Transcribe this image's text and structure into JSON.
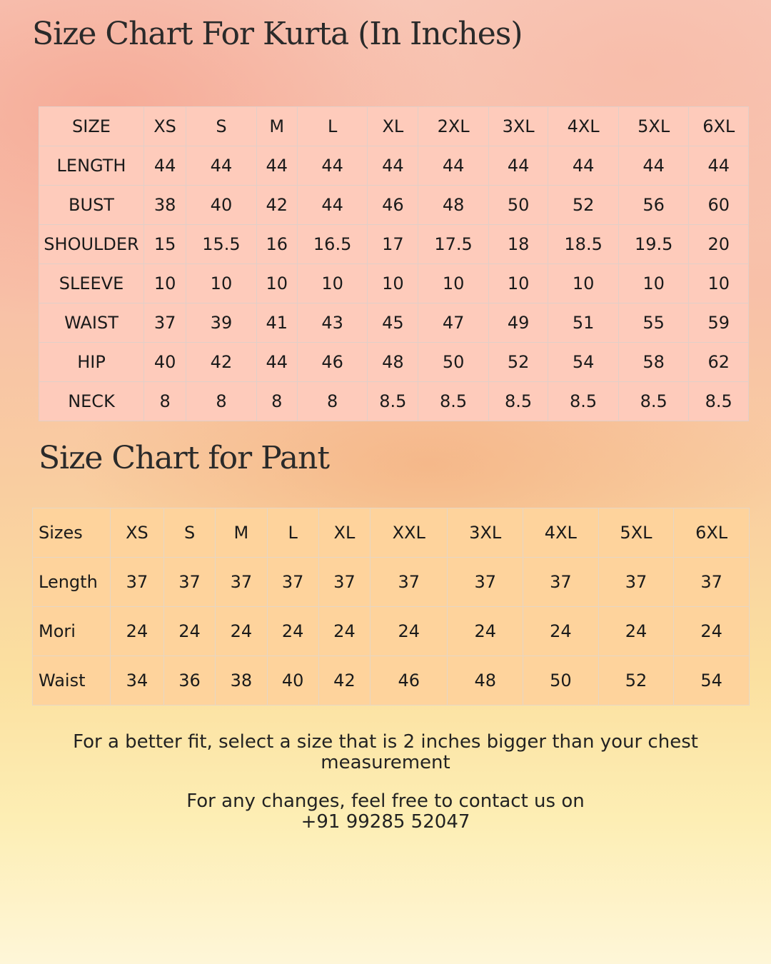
{
  "kurta": {
    "title": "Size Chart For Kurta (In Inches)",
    "rows": [
      [
        "SIZE",
        "XS",
        "S",
        "M",
        "L",
        "XL",
        "2XL",
        "3XL",
        "4XL",
        "5XL",
        "6XL"
      ],
      [
        "LENGTH",
        "44",
        "44",
        "44",
        "44",
        "44",
        "44",
        "44",
        "44",
        "44",
        "44"
      ],
      [
        "BUST",
        "38",
        "40",
        "42",
        "44",
        "46",
        "48",
        "50",
        "52",
        "56",
        "60"
      ],
      [
        "SHOULDER",
        "15",
        "15.5",
        "16",
        "16.5",
        "17",
        "17.5",
        "18",
        "18.5",
        "19.5",
        "20"
      ],
      [
        "SLEEVE",
        "10",
        "10",
        "10",
        "10",
        "10",
        "10",
        "10",
        "10",
        "10",
        "10"
      ],
      [
        "WAIST",
        "37",
        "39",
        "41",
        "43",
        "45",
        "47",
        "49",
        "51",
        "55",
        "59"
      ],
      [
        "HIP",
        "40",
        "42",
        "44",
        "46",
        "48",
        "50",
        "52",
        "54",
        "58",
        "62"
      ],
      [
        "NECK",
        "8",
        "8",
        "8",
        "8",
        "8.5",
        "8.5",
        "8.5",
        "8.5",
        "8.5",
        "8.5"
      ]
    ]
  },
  "pant": {
    "title": "Size Chart for Pant",
    "rows": [
      [
        "Sizes",
        "XS",
        "S",
        "M",
        "L",
        "XL",
        "XXL",
        "3XL",
        "4XL",
        "5XL",
        "6XL"
      ],
      [
        "Length",
        "37",
        "37",
        "37",
        "37",
        "37",
        "37",
        "37",
        "37",
        "37",
        "37"
      ],
      [
        "Mori",
        "24",
        "24",
        "24",
        "24",
        "24",
        "24",
        "24",
        "24",
        "24",
        "24"
      ],
      [
        "Waist",
        "34",
        "36",
        "38",
        "40",
        "42",
        "46",
        "48",
        "50",
        "52",
        "54"
      ]
    ]
  },
  "notes": {
    "fit": "For a better fit, select a size that is 2 inches bigger than your chest measurement",
    "contact_line": "For any changes, feel free to contact us on",
    "phone": "+91 99285 52047"
  }
}
